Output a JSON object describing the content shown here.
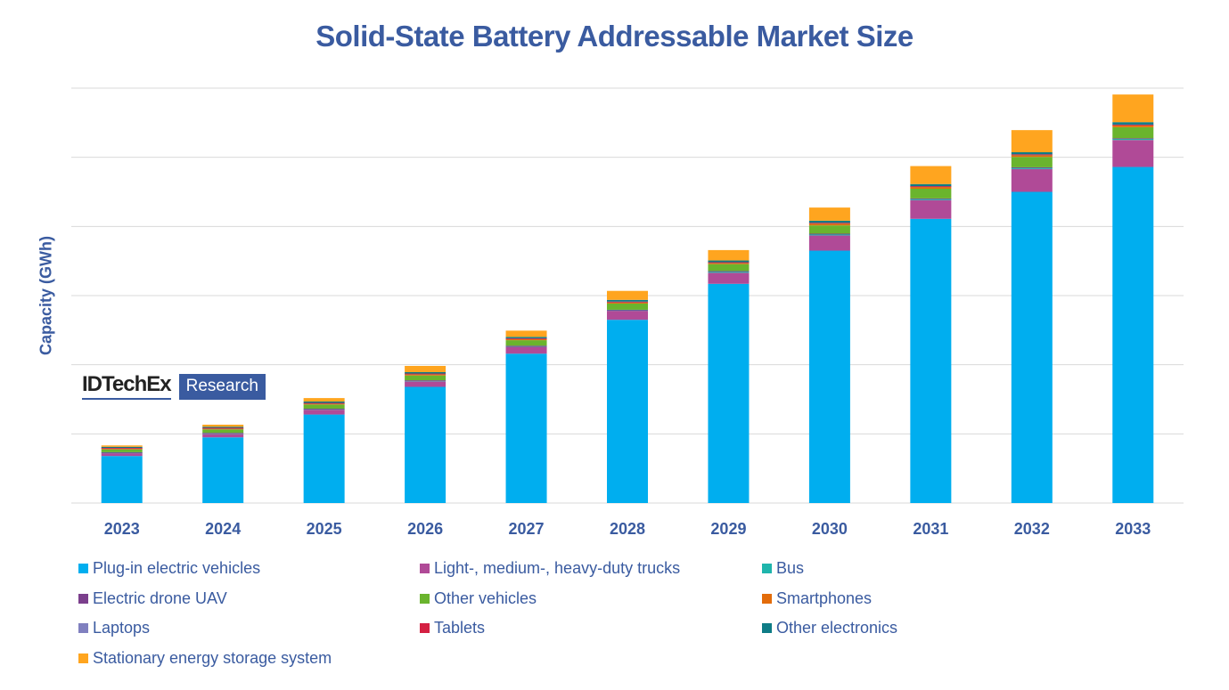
{
  "chart_data": {
    "type": "bar",
    "stacked": true,
    "title": "Solid-State Battery Addressable Market Size",
    "xlabel": "",
    "ylabel": "Capacity (GWh)",
    "y_units_note": "No y-axis tick labels shown; values estimated in gridline units (1 unit = 1 gridline interval)",
    "ylim": [
      0,
      6
    ],
    "grid": true,
    "legend_position": "bottom",
    "categories": [
      "2023",
      "2024",
      "2025",
      "2026",
      "2027",
      "2028",
      "2029",
      "2030",
      "2031",
      "2032",
      "2033"
    ],
    "series": [
      {
        "name": "Plug-in electric vehicles",
        "color": "#00AEEF",
        "values": [
          0.68,
          0.95,
          1.28,
          1.68,
          2.16,
          2.65,
          3.17,
          3.65,
          4.11,
          4.5,
          4.86
        ]
      },
      {
        "name": "Light-, medium-, heavy-duty trucks",
        "color": "#B04A97",
        "values": [
          0.04,
          0.05,
          0.07,
          0.08,
          0.1,
          0.13,
          0.16,
          0.22,
          0.27,
          0.33,
          0.39
        ]
      },
      {
        "name": "Bus",
        "color": "#1FB5AC",
        "values": [
          0.01,
          0.01,
          0.01,
          0.01,
          0.01,
          0.01,
          0.02,
          0.02,
          0.02,
          0.02,
          0.02
        ]
      },
      {
        "name": "Electric drone UAV",
        "color": "#7B3F8C",
        "values": [
          0.005,
          0.005,
          0.005,
          0.005,
          0.005,
          0.005,
          0.005,
          0.005,
          0.005,
          0.005,
          0.005
        ]
      },
      {
        "name": "Other vehicles",
        "color": "#6AB42D",
        "values": [
          0.04,
          0.05,
          0.06,
          0.07,
          0.08,
          0.09,
          0.1,
          0.12,
          0.14,
          0.15,
          0.16
        ]
      },
      {
        "name": "Smartphones",
        "color": "#E36C0A",
        "values": [
          0.015,
          0.015,
          0.015,
          0.02,
          0.02,
          0.02,
          0.02,
          0.03,
          0.03,
          0.03,
          0.03
        ]
      },
      {
        "name": "Laptops",
        "color": "#8080BF",
        "values": [
          0.005,
          0.005,
          0.005,
          0.005,
          0.005,
          0.005,
          0.005,
          0.005,
          0.005,
          0.005,
          0.005
        ]
      },
      {
        "name": "Tablets",
        "color": "#D42042",
        "values": [
          0.003,
          0.003,
          0.003,
          0.003,
          0.003,
          0.003,
          0.003,
          0.003,
          0.003,
          0.003,
          0.003
        ]
      },
      {
        "name": "Other electronics",
        "color": "#0E7C86",
        "values": [
          0.015,
          0.015,
          0.02,
          0.02,
          0.02,
          0.025,
          0.025,
          0.03,
          0.03,
          0.03,
          0.035
        ]
      },
      {
        "name": "Stationary energy storage system",
        "color": "#FFA51F",
        "values": [
          0.02,
          0.03,
          0.05,
          0.09,
          0.09,
          0.13,
          0.15,
          0.19,
          0.26,
          0.32,
          0.4
        ]
      }
    ]
  },
  "logo": {
    "brand": "IDTechEx",
    "tag": "Research"
  }
}
